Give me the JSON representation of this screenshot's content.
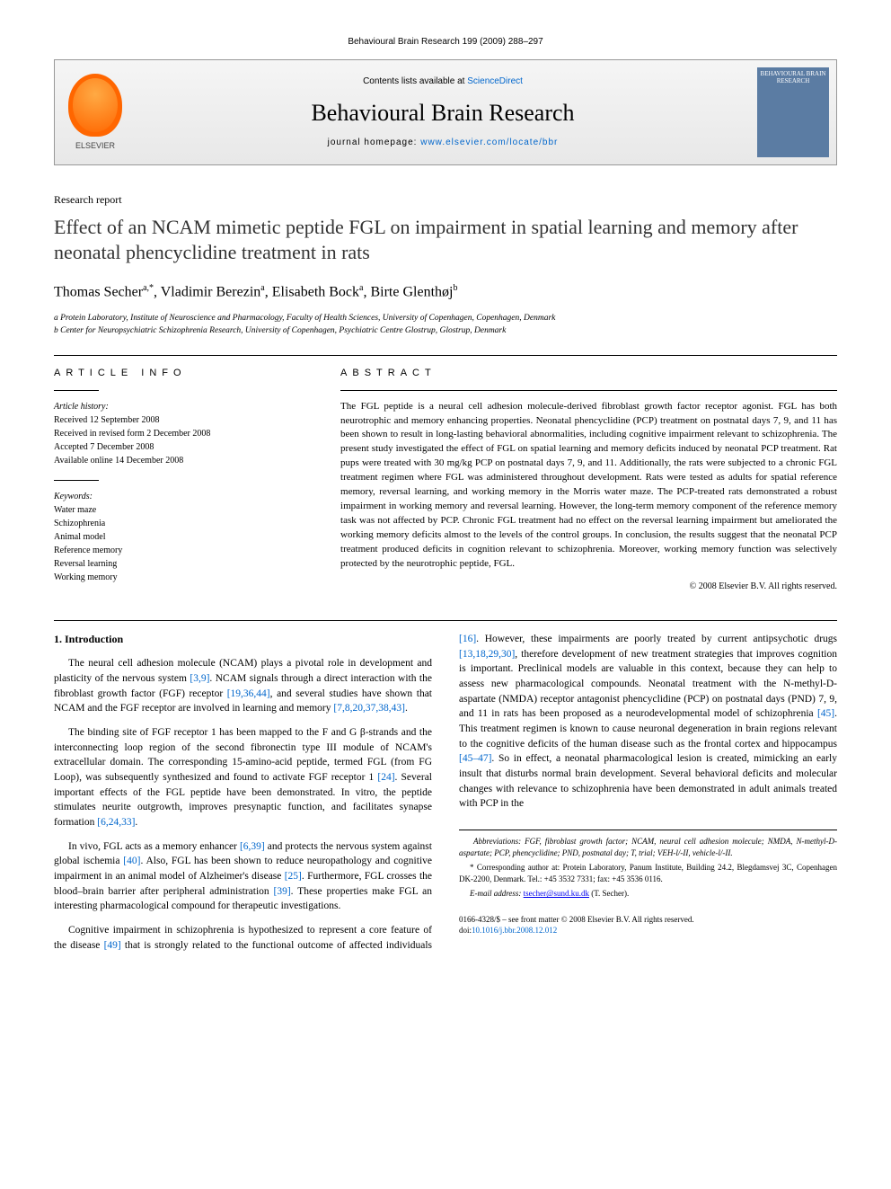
{
  "page_header": "Behavioural Brain Research 199 (2009) 288–297",
  "banner": {
    "contents_prefix": "Contents lists available at ",
    "contents_link": "ScienceDirect",
    "journal": "Behavioural Brain Research",
    "homepage_prefix": "journal homepage: ",
    "homepage_link": "www.elsevier.com/locate/bbr",
    "publisher_label": "ELSEVIER",
    "cover_text": "BEHAVIOURAL BRAIN RESEARCH"
  },
  "article_type": "Research report",
  "title": "Effect of an NCAM mimetic peptide FGL on impairment in spatial learning and memory after neonatal phencyclidine treatment in rats",
  "authors_html": "Thomas Secher<sup>a,*</sup>, Vladimir Berezin<sup>a</sup>, Elisabeth Bock<sup>a</sup>, Birte Glenthøj<sup>b</sup>",
  "affiliations": [
    "a Protein Laboratory, Institute of Neuroscience and Pharmacology, Faculty of Health Sciences, University of Copenhagen, Copenhagen, Denmark",
    "b Center for Neuropsychiatric Schizophrenia Research, University of Copenhagen, Psychiatric Centre Glostrup, Glostrup, Denmark"
  ],
  "info_head": "ARTICLE INFO",
  "abstract_head": "ABSTRACT",
  "history": {
    "label": "Article history:",
    "lines": [
      "Received 12 September 2008",
      "Received in revised form 2 December 2008",
      "Accepted 7 December 2008",
      "Available online 14 December 2008"
    ]
  },
  "keywords": {
    "label": "Keywords:",
    "items": [
      "Water maze",
      "Schizophrenia",
      "Animal model",
      "Reference memory",
      "Reversal learning",
      "Working memory"
    ]
  },
  "abstract": "The FGL peptide is a neural cell adhesion molecule-derived fibroblast growth factor receptor agonist. FGL has both neurotrophic and memory enhancing properties. Neonatal phencyclidine (PCP) treatment on postnatal days 7, 9, and 11 has been shown to result in long-lasting behavioral abnormalities, including cognitive impairment relevant to schizophrenia. The present study investigated the effect of FGL on spatial learning and memory deficits induced by neonatal PCP treatment. Rat pups were treated with 30 mg/kg PCP on postnatal days 7, 9, and 11. Additionally, the rats were subjected to a chronic FGL treatment regimen where FGL was administered throughout development. Rats were tested as adults for spatial reference memory, reversal learning, and working memory in the Morris water maze. The PCP-treated rats demonstrated a robust impairment in working memory and reversal learning. However, the long-term memory component of the reference memory task was not affected by PCP. Chronic FGL treatment had no effect on the reversal learning impairment but ameliorated the working memory deficits almost to the levels of the control groups. In conclusion, the results suggest that the neonatal PCP treatment produced deficits in cognition relevant to schizophrenia. Moreover, working memory function was selectively protected by the neurotrophic peptide, FGL.",
  "copyright": "© 2008 Elsevier B.V. All rights reserved.",
  "intro_heading": "1. Introduction",
  "intro_paragraphs": [
    "The neural cell adhesion molecule (NCAM) plays a pivotal role in development and plasticity of the nervous system [3,9]. NCAM signals through a direct interaction with the fibroblast growth factor (FGF) receptor [19,36,44], and several studies have shown that NCAM and the FGF receptor are involved in learning and memory [7,8,20,37,38,43].",
    "The binding site of FGF receptor 1 has been mapped to the F and G β-strands and the interconnecting loop region of the second fibronectin type III module of NCAM's extracellular domain. The corresponding 15-amino-acid peptide, termed FGL (from FG Loop), was subsequently synthesized and found to activate FGF receptor 1 [24]. Several important effects of the FGL peptide have been demonstrated. In vitro, the peptide stimulates neurite outgrowth, improves presynaptic function, and facilitates synapse formation [6,24,33].",
    "In vivo, FGL acts as a memory enhancer [6,39] and protects the nervous system against global ischemia [40]. Also, FGL has been shown to reduce neuropathology and cognitive impairment in an animal model of Alzheimer's disease [25]. Furthermore, FGL crosses the blood–brain barrier after peripheral administration [39]. These properties make FGL an interesting pharmacological compound for therapeutic investigations.",
    "Cognitive impairment in schizophrenia is hypothesized to represent a core feature of the disease [49] that is strongly related to the functional outcome of affected individuals [16]. However, these impairments are poorly treated by current antipsychotic drugs [13,18,29,30], therefore development of new treatment strategies that improves cognition is important. Preclinical models are valuable in this context, because they can help to assess new pharmacological compounds. Neonatal treatment with the N-methyl-D-aspartate (NMDA) receptor antagonist phencyclidine (PCP) on postnatal days (PND) 7, 9, and 11 in rats has been proposed as a neurodevelopmental model of schizophrenia [45]. This treatment regimen is known to cause neuronal degeneration in brain regions relevant to the cognitive deficits of the human disease such as the frontal cortex and hippocampus [45–47]. So in effect, a neonatal pharmacological lesion is created, mimicking an early insult that disturbs normal brain development. Several behavioral deficits and molecular changes with relevance to schizophrenia have been demonstrated in adult animals treated with PCP in the"
  ],
  "abbreviations": "Abbreviations: FGF, fibroblast growth factor; NCAM, neural cell adhesion molecule; NMDA, N-methyl-D-aspartate; PCP, phencyclidine; PND, postnatal day; T, trial; VEH-l/-II, vehicle-l/-II.",
  "corresponding": "* Corresponding author at: Protein Laboratory, Panum Institute, Building 24.2, Blegdamsvej 3C, Copenhagen DK-2200, Denmark. Tel.: +45 3532 7331; fax: +45 3536 0116.",
  "email_label": "E-mail address: ",
  "email": "tsecher@sund.ku.dk",
  "email_suffix": " (T. Secher).",
  "footer": {
    "issn": "0166-4328/$ – see front matter © 2008 Elsevier B.V. All rights reserved.",
    "doi_label": "doi:",
    "doi": "10.1016/j.bbr.2008.12.012"
  }
}
